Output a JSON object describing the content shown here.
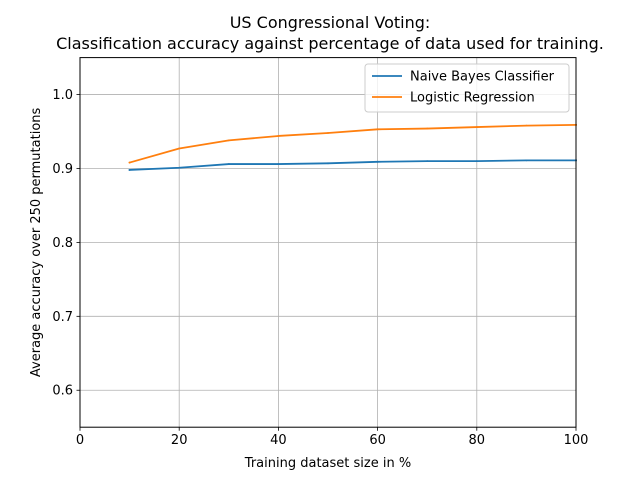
{
  "chart_data": {
    "type": "line",
    "title_line1": "US Congressional Voting:",
    "title_line2": "Classification accuracy against percentage of data used for training.",
    "xlabel": "Training dataset size in %",
    "ylabel": "Average accuracy over 250 permutations",
    "xlim": [
      0,
      100
    ],
    "ylim": [
      0.55,
      1.05
    ],
    "xticks": [
      0,
      20,
      40,
      60,
      80,
      100
    ],
    "xtick_labels": [
      "0",
      "20",
      "40",
      "60",
      "80",
      "100"
    ],
    "yticks": [
      0.6,
      0.7,
      0.8,
      0.9,
      1.0
    ],
    "ytick_labels": [
      "0.6",
      "0.7",
      "0.8",
      "0.9",
      "1.0"
    ],
    "grid": true,
    "legend_position": "top-right",
    "x": [
      10,
      20,
      30,
      40,
      50,
      60,
      70,
      80,
      90,
      100
    ],
    "series": [
      {
        "name": "Naive Bayes Classifier",
        "color": "#1f77b4",
        "values": [
          0.898,
          0.901,
          0.906,
          0.906,
          0.907,
          0.909,
          0.91,
          0.91,
          0.911,
          0.911
        ]
      },
      {
        "name": "Logistic Regression",
        "color": "#ff7f0e",
        "values": [
          0.908,
          0.927,
          0.938,
          0.944,
          0.948,
          0.953,
          0.954,
          0.956,
          0.958,
          0.959
        ]
      }
    ]
  }
}
